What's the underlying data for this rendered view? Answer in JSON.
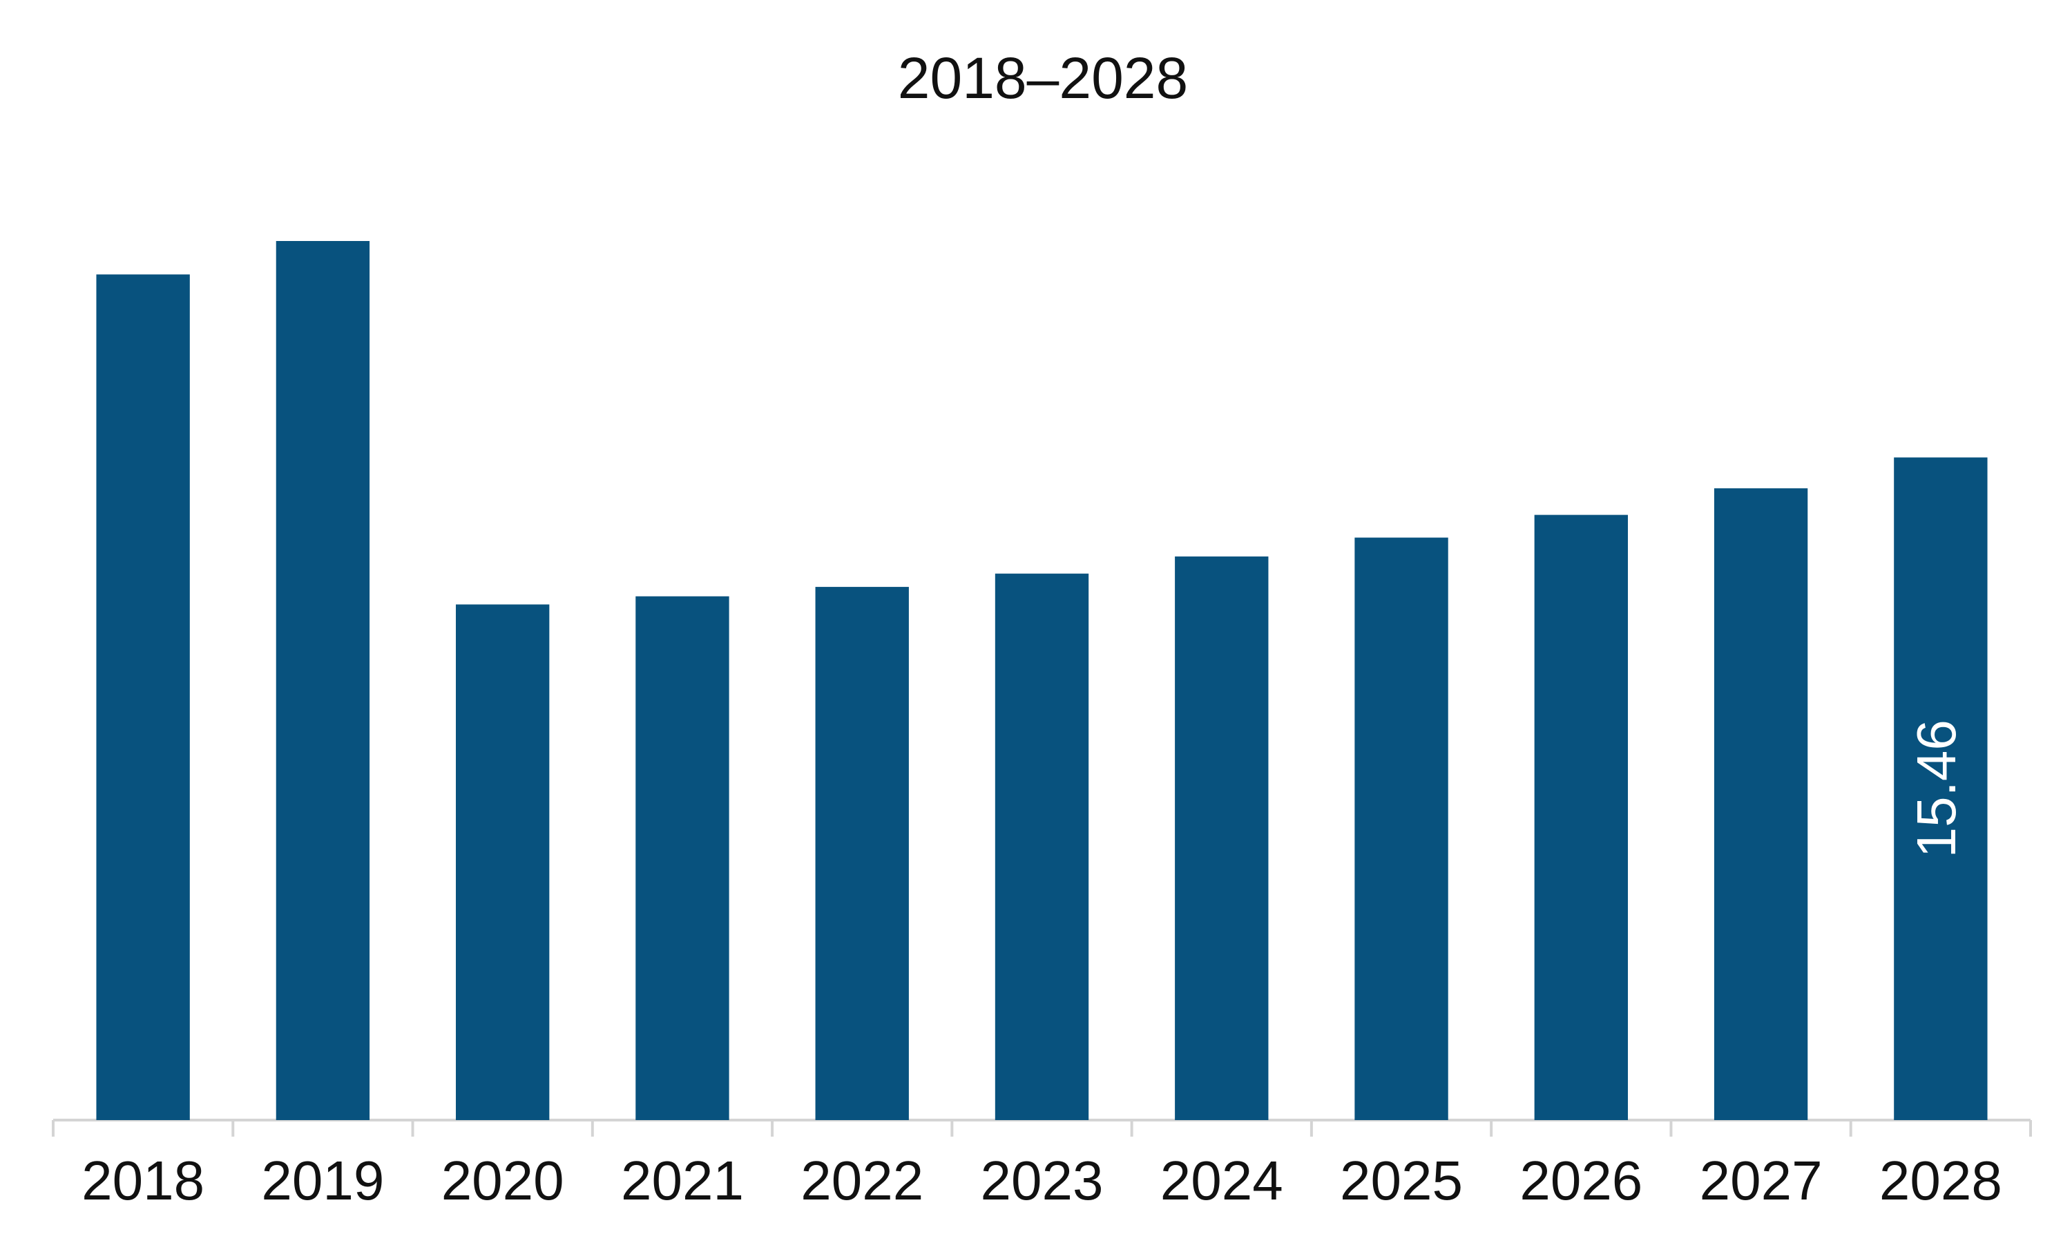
{
  "chart_data": {
    "type": "bar",
    "title": "2018–2028",
    "categories": [
      "2018",
      "2019",
      "2020",
      "2021",
      "2022",
      "2023",
      "2024",
      "2025",
      "2026",
      "2027",
      "2028"
    ],
    "values": [
      19.73,
      20.51,
      12.03,
      12.22,
      12.44,
      12.75,
      13.15,
      13.59,
      14.12,
      14.74,
      15.46
    ],
    "value_labels": [
      null,
      null,
      null,
      null,
      null,
      null,
      null,
      null,
      null,
      null,
      "15.46"
    ],
    "color": "#08527e"
  }
}
